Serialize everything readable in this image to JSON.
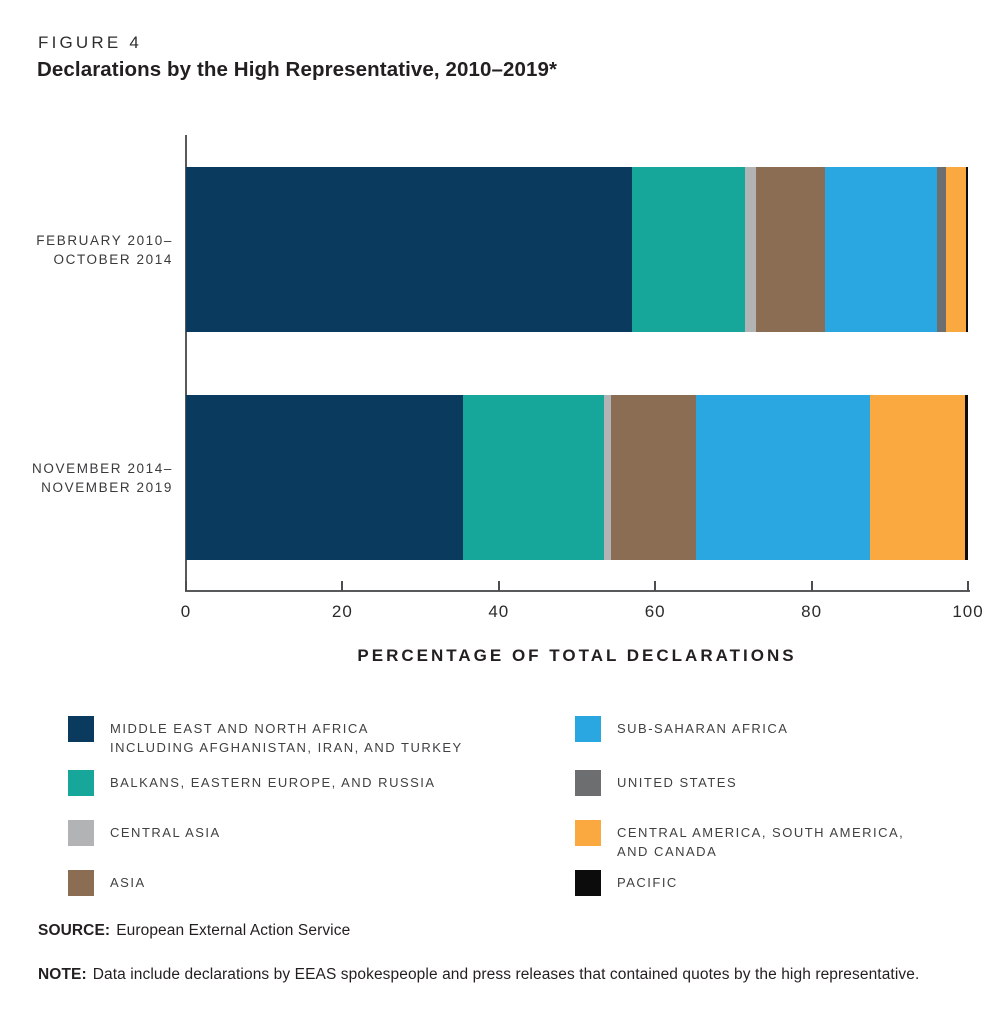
{
  "figure_label": "FIGURE 4",
  "title": "Declarations by the High Representative, 2010–2019*",
  "axis": {
    "caption": "PERCENTAGE OF TOTAL DECLARATIONS",
    "ticks": [
      0,
      20,
      40,
      60,
      80,
      100
    ]
  },
  "chart_data": {
    "type": "bar",
    "orientation": "horizontal",
    "stacked": true,
    "unit": "percent of total declarations",
    "xlim": [
      0,
      100
    ],
    "categories": [
      "FEBRUARY 2010–OCTOBER 2014",
      "NOVEMBER 2014–NOVEMBER 2019"
    ],
    "category_label_lines": [
      [
        "FEBRUARY 2010–",
        "OCTOBER 2014"
      ],
      [
        "NOVEMBER 2014–",
        "NOVEMBER 2019"
      ]
    ],
    "series": [
      {
        "key": "mena",
        "name": "MIDDLE EAST AND NORTH AFRICA INCLUDING AFGHANISTAN, IRAN, AND TURKEY",
        "color": "#0a3a5d",
        "values": [
          57.0,
          35.4
        ]
      },
      {
        "key": "balkans-eastern-europe-russia",
        "name": "BALKANS, EASTERN EUROPE, AND RUSSIA",
        "color": "#16a79a",
        "values": [
          14.5,
          18.0
        ]
      },
      {
        "key": "central-asia",
        "name": "CENTRAL ASIA",
        "color": "#b1b3b5",
        "values": [
          1.4,
          0.9
        ]
      },
      {
        "key": "asia",
        "name": "ASIA",
        "color": "#8b6d53",
        "values": [
          8.8,
          10.9
        ]
      },
      {
        "key": "sub-saharan-africa",
        "name": "SUB-SAHARAN AFRICA",
        "color": "#2aa7e0",
        "values": [
          14.3,
          22.3
        ]
      },
      {
        "key": "united-states",
        "name": "UNITED STATES",
        "color": "#6d6e70",
        "values": [
          1.2,
          0.0
        ]
      },
      {
        "key": "americas",
        "name": "CENTRAL AMERICA, SOUTH AMERICA, AND CANADA",
        "color": "#f9a940",
        "values": [
          2.5,
          12.1
        ]
      },
      {
        "key": "pacific",
        "name": "PACIFIC",
        "color": "#0c0c0c",
        "values": [
          0.3,
          0.4
        ]
      }
    ]
  },
  "legend": {
    "left": [
      {
        "key": "mena",
        "lines": [
          "MIDDLE EAST AND NORTH AFRICA",
          "INCLUDING AFGHANISTAN, IRAN, AND TURKEY"
        ]
      },
      {
        "key": "balkans-eastern-europe-russia",
        "lines": [
          "BALKANS, EASTERN EUROPE, AND RUSSIA"
        ]
      },
      {
        "key": "central-asia",
        "lines": [
          "CENTRAL ASIA"
        ]
      },
      {
        "key": "asia",
        "lines": [
          "ASIA"
        ]
      }
    ],
    "right": [
      {
        "key": "sub-saharan-africa",
        "lines": [
          "SUB-SAHARAN AFRICA"
        ]
      },
      {
        "key": "united-states",
        "lines": [
          "UNITED STATES"
        ]
      },
      {
        "key": "americas",
        "lines": [
          "CENTRAL AMERICA, SOUTH AMERICA,",
          "AND CANADA"
        ]
      },
      {
        "key": "pacific",
        "lines": [
          "PACIFIC"
        ]
      }
    ]
  },
  "source": {
    "label": "SOURCE:",
    "text": "European External Action Service"
  },
  "note": {
    "label": "NOTE:",
    "text": "Data include declarations by EEAS spokespeople and press releases that contained quotes by the high representative."
  }
}
